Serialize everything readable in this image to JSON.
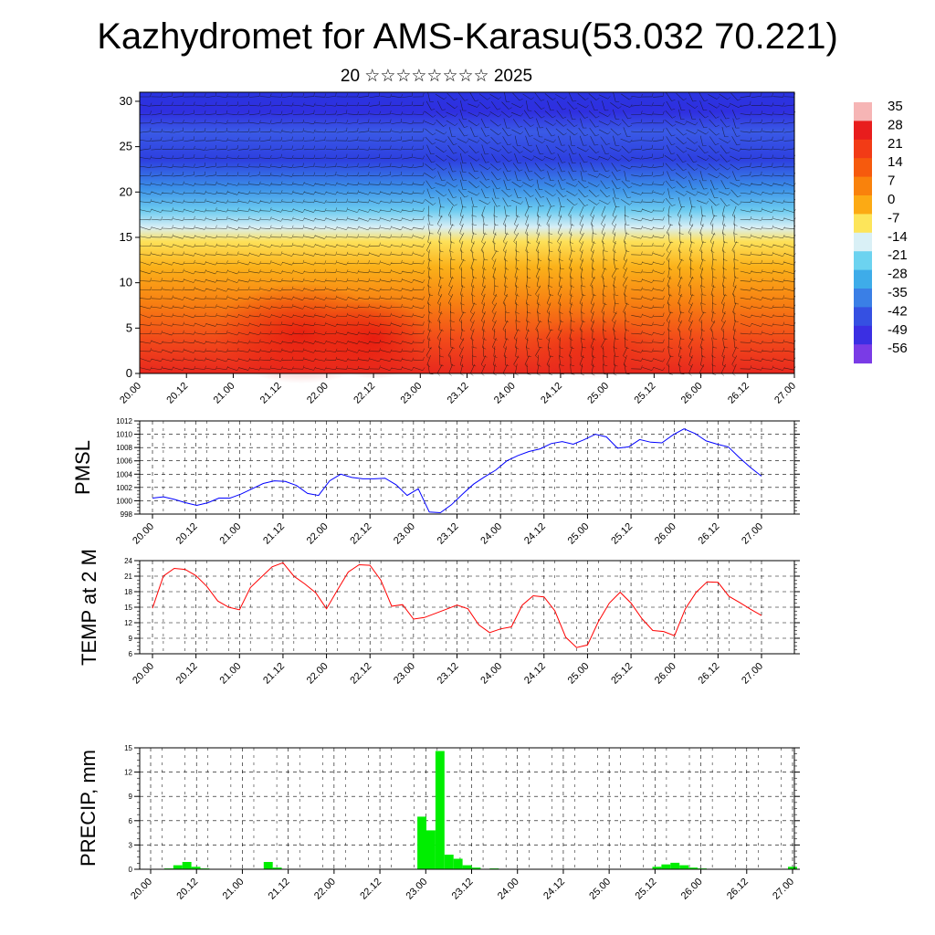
{
  "title": "Kazhydromet for AMS-Karasu(53.032 70.221)",
  "subtitle": "20 ☆☆☆☆☆☆☆☆ 2025",
  "colors": {
    "pmsl_line": "#0000ff",
    "temp_line": "#ff0000",
    "precip_bar": "#00ee00",
    "grid": "#000000"
  },
  "chart_data": [
    {
      "type": "heatmap",
      "title": "",
      "xlabel": "",
      "ylabel": "",
      "x_ticks": [
        "20.00",
        "20.12",
        "21.00",
        "21.12",
        "22.00",
        "22.12",
        "23.00",
        "23.12",
        "24.00",
        "24.12",
        "25.00",
        "25.12",
        "26.00",
        "26.12",
        "27.00"
      ],
      "y_ticks": [
        "0",
        "5",
        "10",
        "15",
        "20",
        "25",
        "30"
      ],
      "ylim": [
        0,
        31
      ],
      "colorbar": {
        "labels": [
          "35",
          "28",
          "21",
          "14",
          "7",
          "0",
          "-7",
          "-14",
          "-21",
          "-28",
          "-35",
          "-42",
          "-49",
          "-56"
        ],
        "colors": [
          "#f6b5b5",
          "#e81d1d",
          "#f23b16",
          "#f65a0d",
          "#f9820c",
          "#fcaa14",
          "#fde55a",
          "#d9f0f6",
          "#6cd3f0",
          "#3eace9",
          "#3a7fe6",
          "#3550e2",
          "#3b2fe3",
          "#7a3be6"
        ]
      },
      "overlay": "wind barbs"
    },
    {
      "type": "line",
      "ylabel": "PMSL",
      "x_ticks": [
        "20.00",
        "20.12",
        "21.00",
        "21.12",
        "22.00",
        "22.12",
        "23.00",
        "23.12",
        "24.00",
        "24.12",
        "25.00",
        "25.12",
        "26.00",
        "26.12",
        "27.00"
      ],
      "y_ticks": [
        "998",
        "1000",
        "1002",
        "1004",
        "1006",
        "1008",
        "1010",
        "1012"
      ],
      "ylim": [
        998,
        1012
      ],
      "series": [
        {
          "values": [
            1000.4,
            1000.6,
            1000.2,
            999.7,
            999.3,
            999.7,
            1000.4,
            1000.4,
            1001.0,
            1001.8,
            1002.6,
            1003.0,
            1002.9,
            1002.3,
            1001.1,
            1000.8,
            1003.0,
            1004.0,
            1003.5,
            1003.3,
            1003.3,
            1003.4,
            1002.4,
            1000.8,
            1001.8,
            998.3,
            998.2,
            999.4,
            1001.0,
            1002.5,
            1003.6,
            1004.6,
            1006.0,
            1006.8,
            1007.4,
            1007.8,
            1008.6,
            1008.9,
            1008.5,
            1009.2,
            1010.0,
            1009.6,
            1007.9,
            1008.1,
            1009.2,
            1008.8,
            1008.7,
            1009.9,
            1010.8,
            1010.1,
            1009.0,
            1008.5,
            1008.1,
            1006.5,
            1005.0,
            1003.7
          ]
        }
      ]
    },
    {
      "type": "line",
      "ylabel": "TEMP at 2 M",
      "x_ticks": [
        "20.00",
        "20.12",
        "21.00",
        "21.12",
        "22.00",
        "22.12",
        "23.00",
        "23.12",
        "24.00",
        "24.12",
        "25.00",
        "25.12",
        "26.00",
        "26.12",
        "27.00"
      ],
      "y_ticks": [
        "6",
        "9",
        "12",
        "15",
        "18",
        "21",
        "24"
      ],
      "ylim": [
        6,
        24
      ],
      "series": [
        {
          "values": [
            14.8,
            21.0,
            22.5,
            22.3,
            21.1,
            19.0,
            16.2,
            15.0,
            14.5,
            18.8,
            20.8,
            22.8,
            23.6,
            21.0,
            19.5,
            17.8,
            14.7,
            18.3,
            21.8,
            23.2,
            23.1,
            20.2,
            15.2,
            15.5,
            12.7,
            13.0,
            13.8,
            14.6,
            15.4,
            14.7,
            11.6,
            10.1,
            10.8,
            11.2,
            15.4,
            17.2,
            17.0,
            14.3,
            9.2,
            7.2,
            7.7,
            12.2,
            15.8,
            17.9,
            15.8,
            12.8,
            10.5,
            10.3,
            9.5,
            14.7,
            17.9,
            19.9,
            19.8,
            17.1,
            15.9,
            14.6,
            13.4
          ]
        }
      ]
    },
    {
      "type": "bar",
      "ylabel": "PRECIP, mm",
      "x_ticks": [
        "20.00",
        "20.12",
        "21.00",
        "21.12",
        "22.00",
        "22.12",
        "23.00",
        "23.12",
        "24.00",
        "24.12",
        "25.00",
        "25.12",
        "26.00",
        "26.12",
        "27.00"
      ],
      "y_ticks": [
        "0",
        "3",
        "6",
        "9",
        "12",
        "15"
      ],
      "ylim": [
        0,
        15
      ],
      "series": [
        {
          "values": [
            0,
            0.0,
            0.1,
            0.5,
            0.9,
            0.3,
            0.1,
            0,
            0,
            0,
            0,
            0,
            0,
            0.9,
            0.2,
            0,
            0,
            0,
            0,
            0,
            0,
            0,
            0,
            0,
            0,
            0,
            0,
            0,
            0,
            0,
            6.5,
            4.8,
            14.6,
            1.8,
            1.3,
            0.5,
            0.2,
            0,
            0.1,
            0,
            0,
            0,
            0,
            0,
            0,
            0,
            0,
            0,
            0,
            0,
            0,
            0,
            0,
            0,
            0,
            0,
            0.3,
            0.6,
            0.8,
            0.5,
            0.2,
            0.1,
            0,
            0,
            0,
            0,
            0,
            0,
            0,
            0,
            0,
            0.3
          ]
        }
      ]
    }
  ]
}
